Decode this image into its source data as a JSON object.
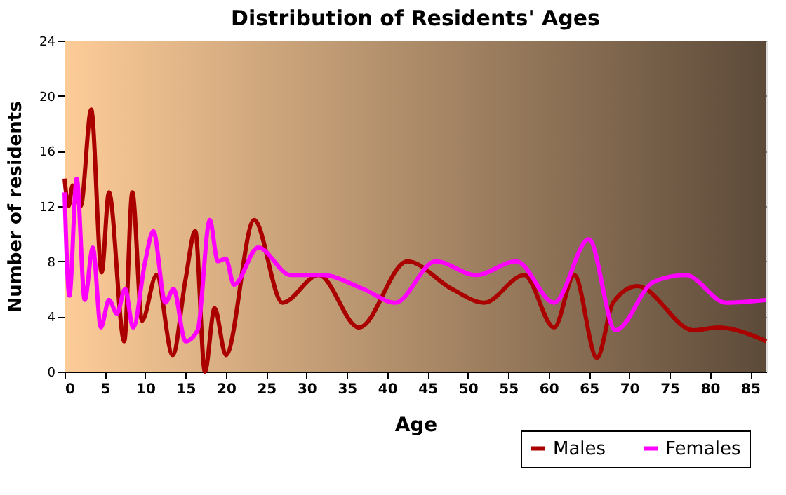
{
  "chart_data": {
    "type": "line",
    "title": "Distribution of Residents' Ages",
    "xlabel": "Age",
    "ylabel": "Number of residents",
    "xlim": [
      0,
      87
    ],
    "xticks": [
      0,
      5,
      10,
      15,
      20,
      25,
      30,
      35,
      40,
      45,
      50,
      55,
      60,
      65,
      70,
      75,
      80,
      85
    ],
    "ylim": [
      0,
      24
    ],
    "yticks": [
      0,
      4,
      8,
      12,
      16,
      20,
      24
    ],
    "grid": true,
    "legend": "bottom right",
    "line_style": "solid",
    "marker": "none",
    "series": [
      {
        "name": "Males",
        "color": "#aa0000",
        "x": [
          0,
          0.5,
          1,
          2,
          3.3,
          4.6,
          5.5,
          7.4,
          8.4,
          9.6,
          11.4,
          13.4,
          15,
          16.2,
          17.4,
          18.6,
          20,
          23.5,
          27,
          31.5,
          36.5,
          42.5,
          48,
          52,
          57,
          60.7,
          63.2,
          66,
          68,
          71,
          78,
          81,
          87
        ],
        "values": [
          14,
          12,
          13.5,
          12,
          19,
          7.2,
          13,
          2.2,
          13,
          3.7,
          7,
          1.2,
          6.7,
          10.2,
          0,
          4.6,
          1.2,
          11,
          5,
          7,
          3.2,
          8,
          6,
          5,
          7,
          3.2,
          7,
          1,
          5,
          6.2,
          3,
          3.2,
          2.2
        ]
      },
      {
        "name": "Females",
        "color": "#ff00ff",
        "x": [
          0,
          0.6,
          1.5,
          2.5,
          3.5,
          4.5,
          5.5,
          6.5,
          7.5,
          8.5,
          10,
          11,
          12.5,
          13.5,
          15,
          16.5,
          18,
          19,
          20,
          21,
          24,
          28,
          32,
          37,
          41,
          46,
          51,
          56,
          60.7,
          65,
          68.3,
          73,
          77,
          82,
          87
        ],
        "values": [
          13,
          5.5,
          14,
          5.2,
          9,
          3.2,
          5.2,
          4.2,
          6,
          3.2,
          8,
          10.2,
          5,
          6,
          2.2,
          3,
          11,
          8,
          8.2,
          6.3,
          9,
          7,
          7,
          6,
          5,
          8,
          7,
          8,
          5,
          9.6,
          3,
          6.5,
          7,
          5,
          5.2
        ]
      }
    ]
  }
}
